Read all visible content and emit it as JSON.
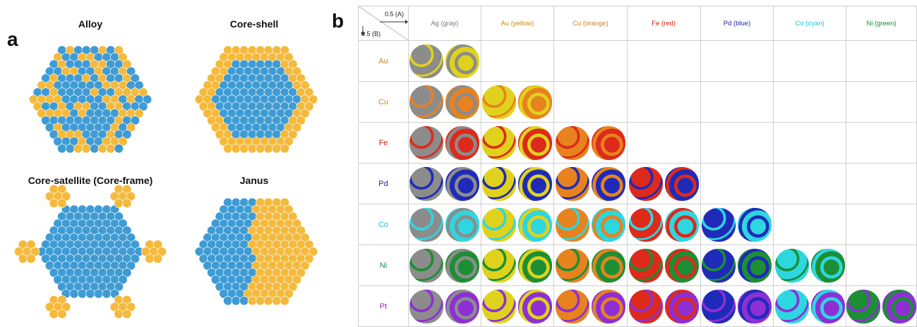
{
  "panel_a": {
    "letter": "a",
    "titles": [
      "Alloy",
      "Core-shell",
      "Core-satellite (Core-frame)",
      "Janus"
    ]
  },
  "panel_b": {
    "letter": "b",
    "axis_a_label": "0.5 (A)",
    "axis_b_label": "0.5 (B)",
    "columns": [
      "Ag (gray)",
      "Au (yellow)",
      "Cu (orange)",
      "Fe (red)",
      "Pd (blue)",
      "Co (cyan)",
      "Ni (green)"
    ],
    "rows": [
      "Au",
      "Cu",
      "Fe",
      "Pd",
      "Co",
      "Ni",
      "Pt"
    ]
  },
  "colors": {
    "atom_blue": "#3e9bd4",
    "atom_yellow": "#f5b93b",
    "Ag": "#8c8c8c",
    "Au": "#e0d21c",
    "Cu": "#e8821e",
    "Fe": "#dd2a1a",
    "Pd": "#1f2bb8",
    "Co": "#2ed6e0",
    "Ni": "#1c8f34",
    "Pt": "#8e2fd6",
    "col_Ag": "#777777",
    "col_Au": "#c8870a",
    "col_Cu": "#e07a14",
    "col_Fe": "#cc1c12",
    "col_Pd": "#1c28a8",
    "col_Co": "#18c4d6",
    "col_Ni": "#14903a",
    "col_Pt": "#9b28c8"
  }
}
